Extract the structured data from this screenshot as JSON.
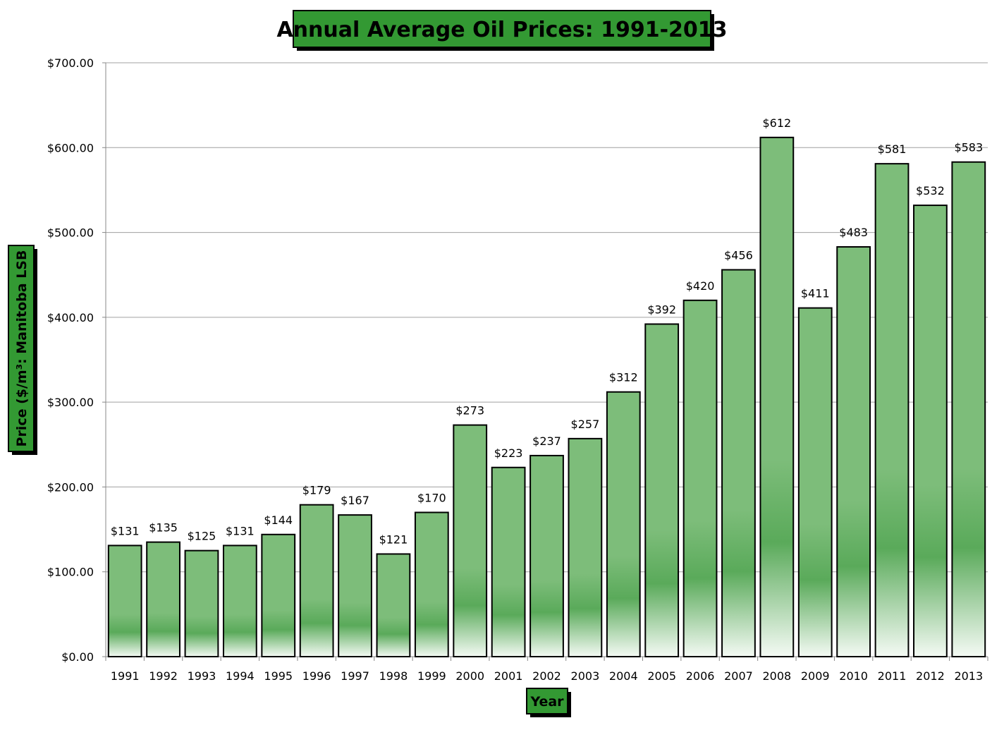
{
  "chart_data": {
    "type": "bar",
    "title": "Annual Average Oil Prices: 1991-2013",
    "xlabel": "Year",
    "ylabel": "Price ($/m³: Manitoba LSB",
    "ylim": [
      0,
      700
    ],
    "ytick_values": [
      0,
      100,
      200,
      300,
      400,
      500,
      600,
      700
    ],
    "ytick_labels": [
      "$0.00",
      "$100.00",
      "$200.00",
      "$300.00",
      "$400.00",
      "$500.00",
      "$600.00",
      "$700.00"
    ],
    "categories": [
      "1991",
      "1992",
      "1993",
      "1994",
      "1995",
      "1996",
      "1997",
      "1998",
      "1999",
      "2000",
      "2001",
      "2002",
      "2003",
      "2004",
      "2005",
      "2006",
      "2007",
      "2008",
      "2009",
      "2010",
      "2011",
      "2012",
      "2013"
    ],
    "values": [
      131,
      135,
      125,
      131,
      144,
      179,
      167,
      121,
      170,
      273,
      223,
      237,
      257,
      312,
      392,
      420,
      456,
      612,
      411,
      483,
      581,
      532,
      583
    ],
    "data_labels": [
      "$131",
      "$135",
      "$125",
      "$131",
      "$144",
      "$179",
      "$167",
      "$121",
      "$170",
      "$273",
      "$223",
      "$237",
      "$257",
      "$312",
      "$392",
      "$420",
      "$456",
      "$612",
      "$411",
      "$483",
      "$581",
      "$532",
      "$583"
    ],
    "grid": true,
    "legend": "none",
    "colors": {
      "bar_top": "#7dbd7a",
      "bar_mid": "#5aaa5a",
      "bar_bottom": "#f4faf4",
      "bar_stroke": "#000000",
      "title_fill": "#339933",
      "gridline": "#a0a0a0"
    }
  }
}
